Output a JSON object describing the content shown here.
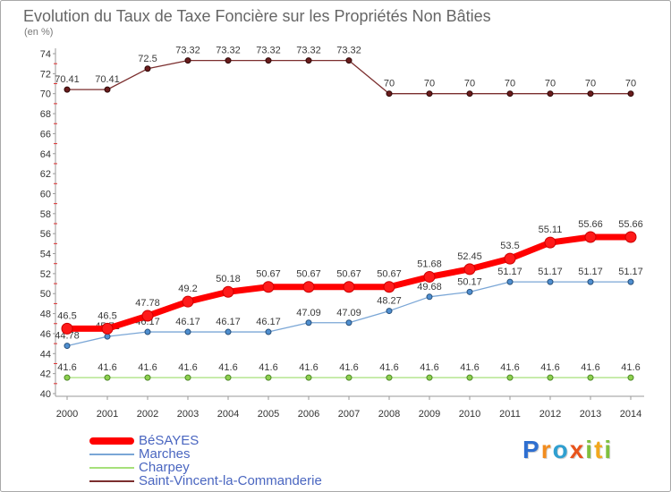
{
  "chart_data": {
    "type": "line",
    "title": "Evolution du Taux de Taxe Foncière sur les Propriétés Non Bâties",
    "subtitle": "(en %)",
    "xlabel": "",
    "ylabel": "",
    "categories": [
      "2000",
      "2001",
      "2002",
      "2003",
      "2004",
      "2005",
      "2006",
      "2007",
      "2008",
      "2009",
      "2010",
      "2011",
      "2012",
      "2013",
      "2014"
    ],
    "ylim": [
      40,
      74
    ],
    "yticks": [
      40,
      42,
      44,
      46,
      48,
      50,
      52,
      54,
      56,
      58,
      60,
      62,
      64,
      66,
      68,
      70,
      72,
      74
    ],
    "grid": false,
    "legend": "bottom-left",
    "series": [
      {
        "name": "BéSAYES",
        "color": "#ff0000",
        "marker_color": "#ff1a1a",
        "marker_stroke": "#cc0000",
        "values": [
          46.5,
          46.5,
          47.78,
          49.2,
          50.18,
          50.67,
          50.67,
          50.67,
          50.67,
          51.68,
          52.45,
          53.5,
          55.11,
          55.66,
          55.66
        ]
      },
      {
        "name": "Marches",
        "color": "#7aa6d6",
        "marker_color": "#4f8fd0",
        "marker_stroke": "#28507a",
        "values": [
          44.78,
          45.71,
          46.17,
          46.17,
          46.17,
          46.17,
          47.09,
          47.09,
          48.27,
          49.68,
          50.17,
          51.17,
          51.17,
          51.17,
          51.17
        ]
      },
      {
        "name": "Charpey",
        "color": "#a6e07a",
        "marker_color": "#8ed04f",
        "marker_stroke": "#4f8a2a",
        "values": [
          41.6,
          41.6,
          41.6,
          41.6,
          41.6,
          41.6,
          41.6,
          41.6,
          41.6,
          41.6,
          41.6,
          41.6,
          41.6,
          41.6,
          41.6
        ]
      },
      {
        "name": "Saint-Vincent-la-Commanderie",
        "color": "#7b2e2e",
        "marker_color": "#6a1c1c",
        "marker_stroke": "#2e0808",
        "values": [
          70.41,
          70.41,
          72.5,
          73.32,
          73.32,
          73.32,
          73.32,
          73.32,
          70,
          70,
          70,
          70,
          70,
          70,
          70
        ]
      }
    ]
  },
  "logo": {
    "letters": [
      "P",
      "r",
      "o",
      "x",
      "i",
      "t",
      "i"
    ],
    "colors": [
      "#2f6fd0",
      "#f28c1e",
      "#2f9fd0",
      "#e8541c",
      "#7fbf3f",
      "#f2a81e",
      "#7fbf3f"
    ]
  }
}
